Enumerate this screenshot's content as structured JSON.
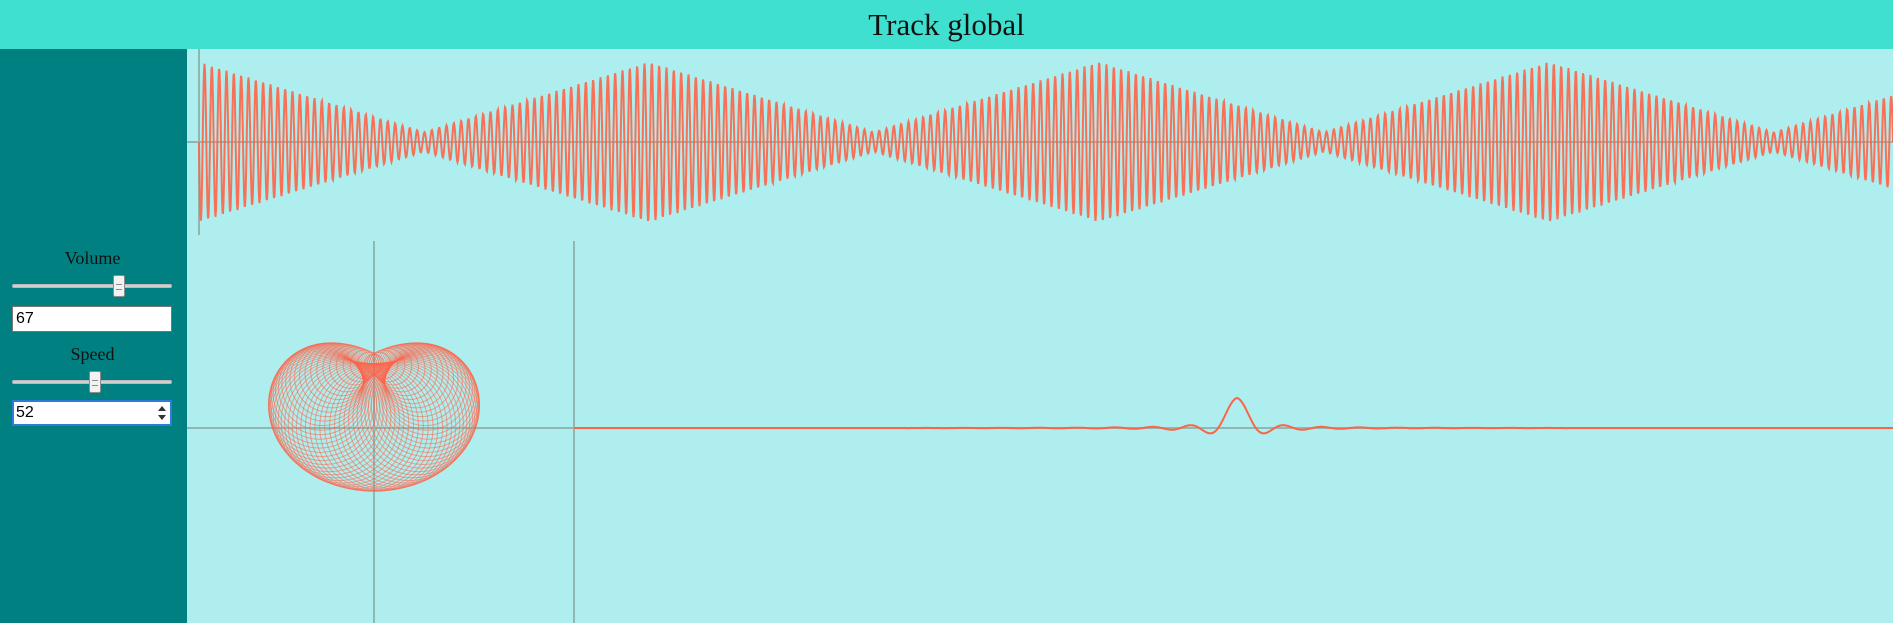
{
  "header": {
    "title": "Track global"
  },
  "controls": {
    "volume": {
      "label": "Volume",
      "value": "67",
      "slider_fraction": 0.67
    },
    "speed": {
      "label": "Speed",
      "value": "52",
      "slider_fraction": 0.52
    }
  },
  "colors": {
    "header_bg": "#40e0d0",
    "sidebar_bg": "#008080",
    "plot_bg": "#afeeee",
    "signal": "#ff6347",
    "axis": "#8fb8b0"
  },
  "icons": {
    "spinner": "spin-arrows-icon"
  }
}
